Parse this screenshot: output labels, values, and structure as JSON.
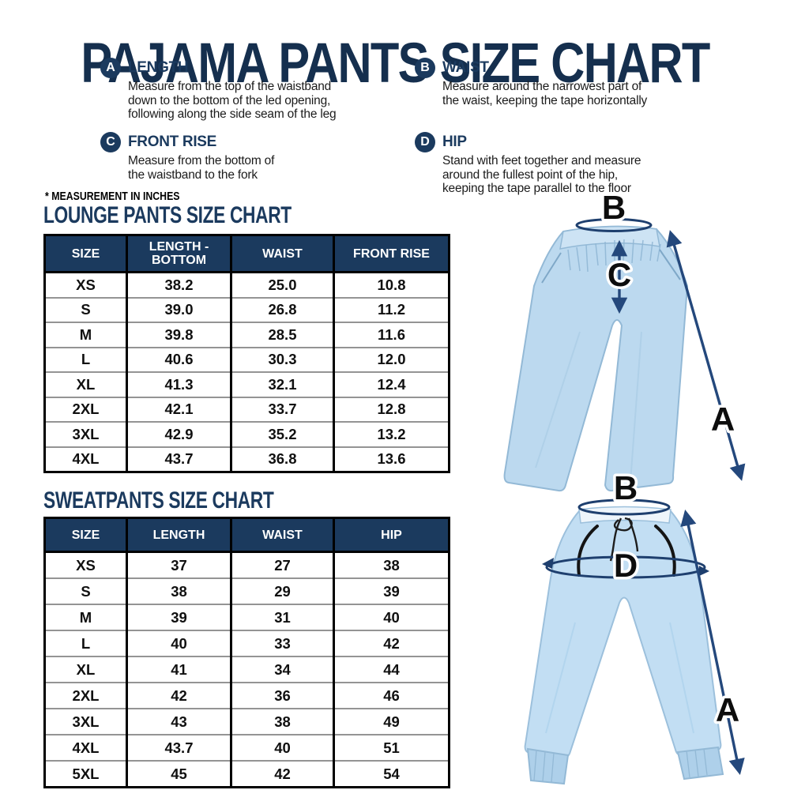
{
  "title": "PAJAMA PANTS SIZE CHART",
  "note": "* MEASUREMENT IN INCHES",
  "measurements": [
    {
      "letter": "A",
      "name": "LENGTH",
      "description": "Measure from the top of the waistband\ndown to the bottom of the led opening,\nfollowing along the side seam of the leg"
    },
    {
      "letter": "B",
      "name": "WAIST",
      "description": "Measure around the narrowest part of\nthe waist, keeping the tape horizontally"
    },
    {
      "letter": "C",
      "name": "FRONT RISE",
      "description": "Measure from the bottom of\nthe waistband to the fork"
    },
    {
      "letter": "D",
      "name": "HIP",
      "description": "Stand with feet together and measure\naround the fullest point of the hip,\nkeeping the tape parallel to the floor"
    }
  ],
  "lounge_chart": {
    "title": "LOUNGE PANTS SIZE CHART",
    "headers": [
      "SIZE",
      "LENGTH - BOTTOM",
      "WAIST",
      "FRONT RISE"
    ],
    "rows": [
      [
        "XS",
        "38.2",
        "25.0",
        "10.8"
      ],
      [
        "S",
        "39.0",
        "26.8",
        "11.2"
      ],
      [
        "M",
        "39.8",
        "28.5",
        "11.6"
      ],
      [
        "L",
        "40.6",
        "30.3",
        "12.0"
      ],
      [
        "XL",
        "41.3",
        "32.1",
        "12.4"
      ],
      [
        "2XL",
        "42.1",
        "33.7",
        "12.8"
      ],
      [
        "3XL",
        "42.9",
        "35.2",
        "13.2"
      ],
      [
        "4XL",
        "43.7",
        "36.8",
        "13.6"
      ]
    ]
  },
  "sweatpants_chart": {
    "title": "SWEATPANTS SIZE CHART",
    "headers": [
      "SIZE",
      "LENGTH",
      "WAIST",
      "HIP"
    ],
    "rows": [
      [
        "XS",
        "37",
        "27",
        "38"
      ],
      [
        "S",
        "38",
        "29",
        "39"
      ],
      [
        "M",
        "39",
        "31",
        "40"
      ],
      [
        "L",
        "40",
        "33",
        "42"
      ],
      [
        "XL",
        "41",
        "34",
        "44"
      ],
      [
        "2XL",
        "42",
        "36",
        "46"
      ],
      [
        "3XL",
        "43",
        "38",
        "49"
      ],
      [
        "4XL",
        "43.7",
        "40",
        "51"
      ],
      [
        "5XL",
        "45",
        "42",
        "54"
      ]
    ]
  },
  "lounge_diagram": {
    "waist_label": "B",
    "front_rise_label": "C",
    "length_label": "A"
  },
  "sweatpants_diagram": {
    "waist_label": "B",
    "hip_label": "D",
    "length_label": "A"
  },
  "colors": {
    "navy": "#1b3a5e",
    "arrow_blue": "#24487c",
    "pants_blue": "#bcd9ef",
    "label_black": "#0d0d0d"
  }
}
